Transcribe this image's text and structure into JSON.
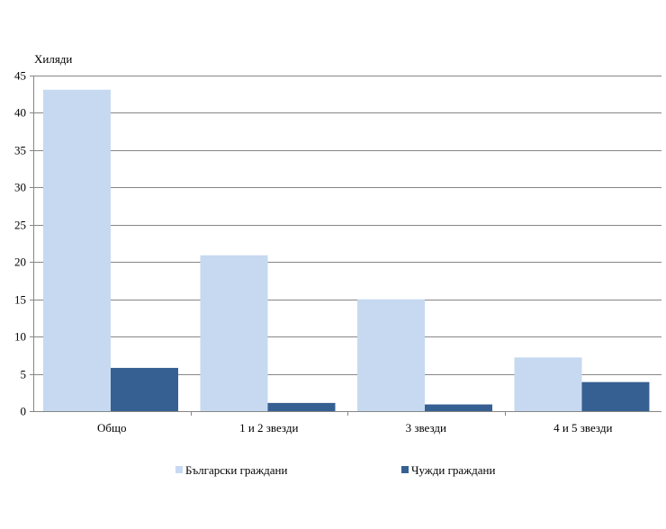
{
  "chart_data": {
    "type": "bar",
    "ylabel": "Хиляди",
    "ylim": [
      0,
      45
    ],
    "yticks": [
      0,
      5,
      10,
      15,
      20,
      25,
      30,
      35,
      40,
      45
    ],
    "categories": [
      "Общо",
      "1 и 2 звезди",
      "3 звезди",
      "4 и 5 звезди"
    ],
    "series": [
      {
        "name": "Български граждани",
        "color": "#c6d9f1",
        "values": [
          43.1,
          20.9,
          15.0,
          7.2
        ]
      },
      {
        "name": "Чужди граждани",
        "color": "#376092",
        "values": [
          5.8,
          1.1,
          0.9,
          3.9
        ]
      }
    ],
    "grid": true,
    "legend_position": "bottom"
  }
}
